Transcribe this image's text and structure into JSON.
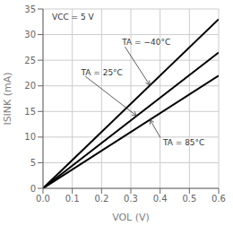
{
  "chart_data": {
    "type": "line",
    "xlabel": "VOL (V)",
    "ylabel": "ISINK (mA)",
    "text": "VCC = 5 V",
    "x": [
      0.0,
      0.6
    ],
    "series": [
      {
        "color": "#000000",
        "values": [
          0.0,
          33.0
        ]
      },
      {
        "color": "#000000",
        "values": [
          0.0,
          26.5
        ]
      },
      {
        "color": "#000000",
        "values": [
          0.0,
          22.0
        ]
      }
    ],
    "xlim": [
      0.0,
      0.6
    ],
    "ylim": [
      0,
      35
    ],
    "xticks": [
      {
        "value": 0.0,
        "label": "0.0"
      },
      0.1,
      0.2,
      0.3,
      0.4,
      0.5,
      0.6
    ],
    "yticks": [
      0,
      5,
      10,
      15,
      20,
      25,
      30,
      35
    ],
    "grid": true,
    "annotations": [
      {
        "text": "TA = −40°C",
        "xy": [
          0.365,
          20.1
        ],
        "xytext": [
          0.27,
          28.5
        ]
      },
      {
        "text": "TA = 25°C",
        "xy": [
          0.32,
          14.13
        ],
        "xytext": [
          0.13,
          22.5
        ]
      },
      {
        "text": "TA = 85°C",
        "xy": [
          0.365,
          13.43
        ],
        "xytext": [
          0.41,
          9.0
        ]
      }
    ]
  }
}
